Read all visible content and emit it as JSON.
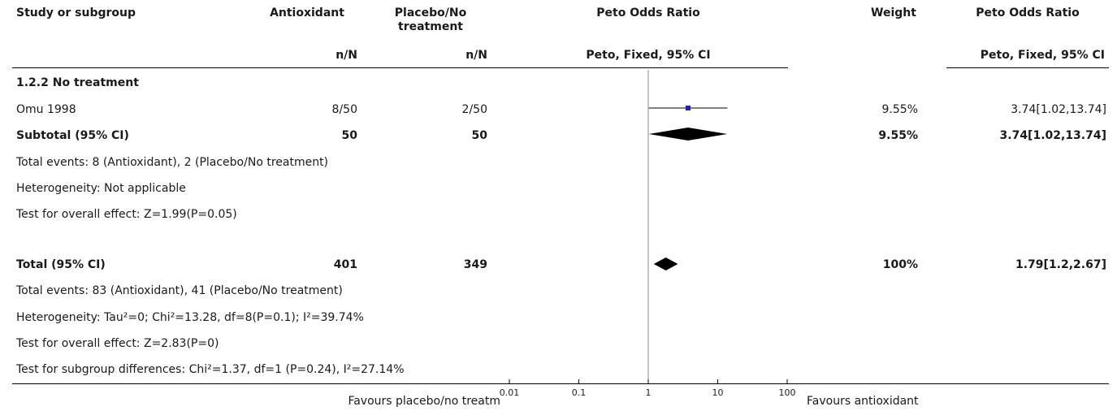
{
  "header": {
    "study": "Study or subgroup",
    "exp": "Antioxidant",
    "ctrl": "Placebo/No treatment",
    "or_title": "Peto Odds Ratio",
    "weight": "Weight",
    "or_title2": "Peto Odds Ratio",
    "exp_sub": "n/N",
    "ctrl_sub": "n/N",
    "method": "Peto, Fixed, 95% CI",
    "method2": "Peto, Fixed, 95% CI"
  },
  "subgroup": {
    "title": "1.2.2 No treatment",
    "study": {
      "name": "Omu 1998",
      "exp": "8/50",
      "ctrl": "2/50",
      "weight": "9.55%",
      "ci": "3.74[1.02,13.74]"
    },
    "subtotal": {
      "label": "Subtotal (95% CI)",
      "exp": "50",
      "ctrl": "50",
      "weight": "9.55%",
      "ci": "3.74[1.02,13.74]"
    },
    "events": "Total events: 8 (Antioxidant), 2 (Placebo/No treatment)",
    "heterogeneity": "Heterogeneity: Not applicable",
    "overall": "Test for overall effect: Z=1.99(P=0.05)"
  },
  "total": {
    "label": "Total (95% CI)",
    "exp": "401",
    "ctrl": "349",
    "weight": "100%",
    "ci": "1.79[1.2,2.67]",
    "events": "Total events: 83 (Antioxidant), 41 (Placebo/No treatment)",
    "heterogeneity": "Heterogeneity: Tau²=0; Chi²=13.28, df=8(P=0.1); I²=39.74%",
    "overall": "Test for overall effect: Z=2.83(P=0)",
    "subgroup_diff": "Test for subgroup differences: Chi²=1.37, df=1 (P=0.24), I²=27.14%"
  },
  "footer": {
    "favours_left": "Favours placebo/no treatm",
    "favours_right": "Favours antioxidant"
  },
  "chart_data": {
    "type": "forest",
    "scale": "log",
    "xlim": [
      0.01,
      100
    ],
    "ticks": [
      0.01,
      0.1,
      1,
      10,
      100
    ],
    "tick_labels": [
      "0.01",
      "0.1",
      "1",
      "10",
      "100"
    ],
    "null_line": 1,
    "colors": {
      "study_marker": "#1e1ec8",
      "diamond": "#000000"
    },
    "studies": [
      {
        "name": "Omu 1998",
        "or": 3.74,
        "lower": 1.02,
        "upper": 13.74
      }
    ],
    "diamonds": [
      {
        "name": "Subtotal (95% CI)",
        "or": 3.74,
        "lower": 1.02,
        "upper": 13.74
      },
      {
        "name": "Total (95% CI)",
        "or": 1.79,
        "lower": 1.2,
        "upper": 2.67
      }
    ]
  }
}
